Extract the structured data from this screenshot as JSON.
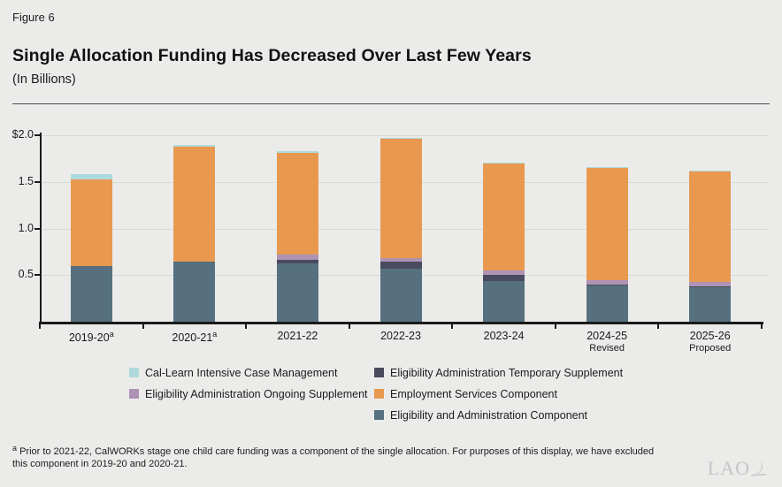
{
  "header": {
    "figure_label": "Figure 6",
    "title": "Single Allocation Funding Has Decreased Over Last Few Years",
    "subtitle": "(In Billions)"
  },
  "chart_data": {
    "type": "stacked_bar",
    "title": "Single Allocation Funding Has Decreased Over Last Few Years",
    "units": "Billions of dollars",
    "ylim": [
      0,
      2.0
    ],
    "grid": true,
    "yticks": [
      {
        "label": "$2.0",
        "value": 2.0
      },
      {
        "label": "1.5",
        "value": 1.5
      },
      {
        "label": "1.0",
        "value": 1.0
      },
      {
        "label": "0.5",
        "value": 0.5
      }
    ],
    "categories": [
      {
        "label": "2019-20",
        "superscript": "a",
        "sublabel": ""
      },
      {
        "label": "2020-21",
        "superscript": "a",
        "sublabel": ""
      },
      {
        "label": "2021-22",
        "superscript": "",
        "sublabel": ""
      },
      {
        "label": "2022-23",
        "superscript": "",
        "sublabel": ""
      },
      {
        "label": "2023-24",
        "superscript": "",
        "sublabel": ""
      },
      {
        "label": "2024-25",
        "superscript": "",
        "sublabel": "Revised"
      },
      {
        "label": "2025-26",
        "superscript": "",
        "sublabel": "Proposed"
      }
    ],
    "series": [
      {
        "name": "Eligibility and Administration Component",
        "color": "#56707F",
        "values": [
          0.6,
          0.64,
          0.63,
          0.57,
          0.44,
          0.39,
          0.37
        ]
      },
      {
        "name": "Eligibility Administration Temporary Supplement",
        "color": "#4A4B5F",
        "values": [
          0,
          0,
          0.03,
          0.07,
          0.06,
          0.01,
          0.01
        ]
      },
      {
        "name": "Eligibility Administration Ongoing Supplement",
        "color": "#AE93B5",
        "values": [
          0,
          0,
          0.06,
          0.04,
          0.05,
          0.05,
          0.05
        ]
      },
      {
        "name": "Employment Services Component",
        "color": "#E8994F",
        "values": [
          0.93,
          1.24,
          1.09,
          1.28,
          1.15,
          1.2,
          1.18
        ]
      },
      {
        "name": "Cal-Learn Intensive Case Management",
        "color": "#AFD9DC",
        "values": [
          0.05,
          0.02,
          0.02,
          0.01,
          0.01,
          0.01,
          0.01
        ]
      }
    ],
    "totals": [
      1.58,
      1.9,
      1.83,
      1.97,
      1.71,
      1.66,
      1.62
    ],
    "legend_position": "bottom"
  },
  "legend": {
    "columns": [
      {
        "items": [
          {
            "label": "Cal-Learn Intensive Case Management",
            "color": "#AFD9DC"
          },
          {
            "label": "Eligibility Administration Ongoing Supplement",
            "color": "#AE93B5"
          }
        ]
      },
      {
        "items": [
          {
            "label": "Eligibility Administration Temporary Supplement",
            "color": "#4A4B5F"
          },
          {
            "label": "Employment Services Component",
            "color": "#E8994F"
          },
          {
            "label": "Eligibility and Administration Component",
            "color": "#56707F"
          }
        ]
      }
    ]
  },
  "footnote": {
    "marker": "a",
    "text": "Prior to 2021-22, CalWORKs stage one child care funding was a component of the single allocation. For purposes of this display, we have excluded this component in 2019-20 and 2020-21."
  },
  "logo": {
    "text": "LAO"
  }
}
